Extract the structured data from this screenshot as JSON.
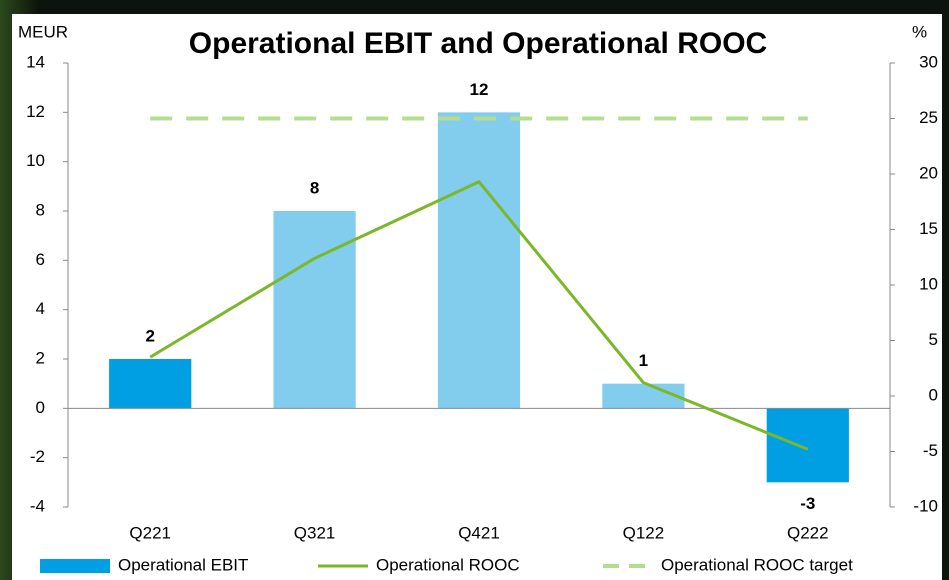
{
  "chart_data": {
    "type": "bar",
    "title": "Operational EBIT and Operational ROOC",
    "y_label": "MEUR",
    "y2_label": "%",
    "categories": [
      "Q221",
      "Q321",
      "Q421",
      "Q122",
      "Q222"
    ],
    "series": [
      {
        "name": "Operational EBIT",
        "type": "bar",
        "color": "#009fe3",
        "colors": [
          "#009fe3",
          "#82cdee",
          "#82cdee",
          "#82cdee",
          "#009fe3"
        ],
        "values": [
          2,
          8,
          12,
          1,
          -3
        ]
      },
      {
        "name": "Operational ROOC",
        "type": "line",
        "color": "#7ab829",
        "axis": "y2",
        "values": [
          3.5,
          12.4,
          19.3,
          1.2,
          -4.8
        ]
      },
      {
        "name": "Operational ROOC target",
        "type": "line",
        "color": "#b5dc91",
        "axis": "y2",
        "dashed": true,
        "values": [
          25,
          25,
          25,
          25,
          25
        ]
      }
    ],
    "ylim": [
      -4,
      14
    ],
    "yticks": [
      -4,
      -2,
      0,
      2,
      4,
      6,
      8,
      10,
      12,
      14
    ],
    "y2lim": [
      -10,
      30
    ],
    "y2ticks": [
      -10,
      -5,
      0,
      5,
      10,
      15,
      20,
      25,
      30
    ],
    "data_labels": true,
    "legend": "bottom"
  }
}
